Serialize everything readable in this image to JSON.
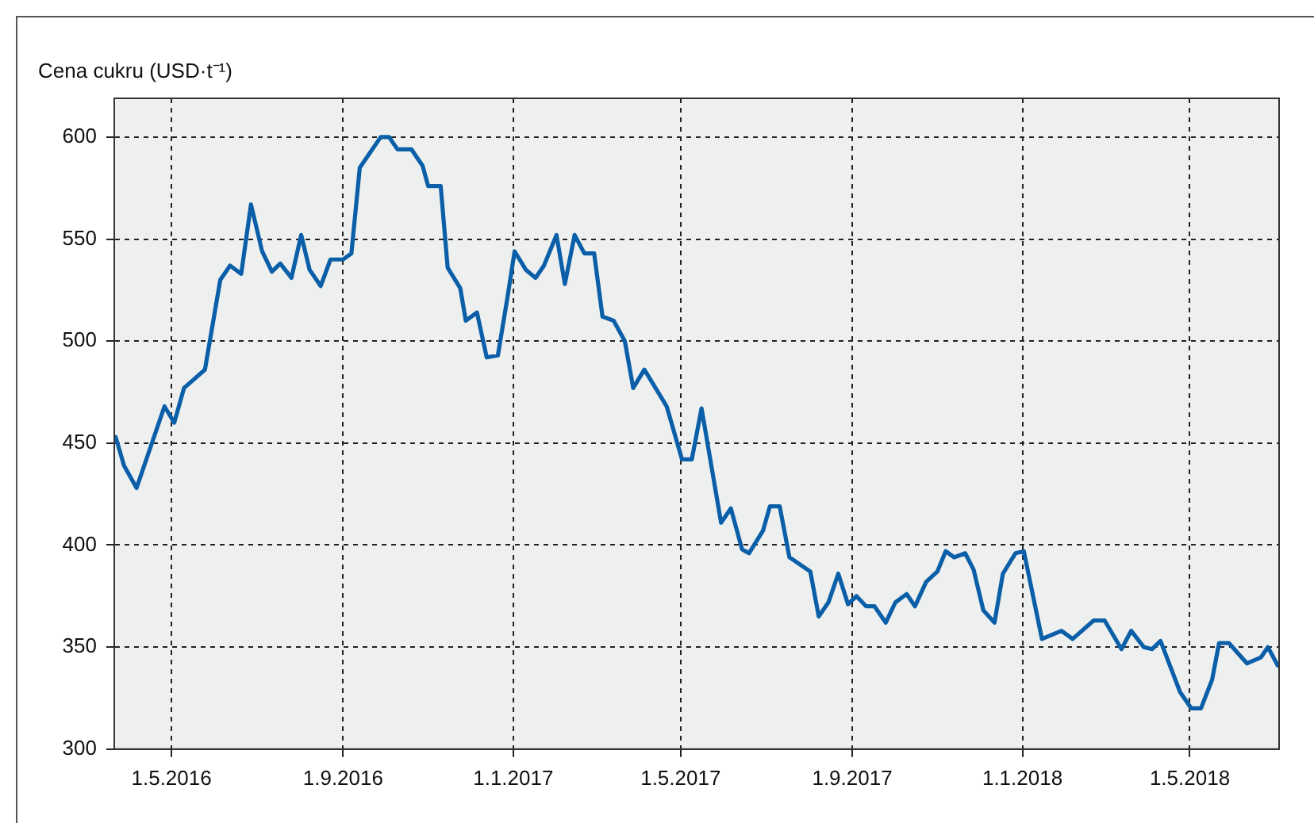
{
  "chart_data": {
    "type": "line",
    "ylabel": "Cena cukru (USD·t⁻¹)",
    "x": [
      "2016-03-22",
      "2016-03-28",
      "2016-04-06",
      "2016-04-14",
      "2016-04-26",
      "2016-05-03",
      "2016-05-10",
      "2016-05-25",
      "2016-06-05",
      "2016-06-12",
      "2016-06-20",
      "2016-06-27",
      "2016-07-05",
      "2016-07-12",
      "2016-07-18",
      "2016-07-26",
      "2016-08-02",
      "2016-08-08",
      "2016-08-16",
      "2016-08-23",
      "2016-09-01",
      "2016-09-07",
      "2016-09-13",
      "2016-09-28",
      "2016-10-04",
      "2016-10-10",
      "2016-10-20",
      "2016-10-28",
      "2016-11-01",
      "2016-11-10",
      "2016-11-15",
      "2016-11-24",
      "2016-11-28",
      "2016-12-06",
      "2016-12-13",
      "2016-12-21",
      "2016-12-28",
      "2017-01-02",
      "2017-01-10",
      "2017-01-17",
      "2017-01-23",
      "2017-02-01",
      "2017-02-07",
      "2017-02-14",
      "2017-02-21",
      "2017-02-28",
      "2017-03-06",
      "2017-03-14",
      "2017-03-22",
      "2017-03-28",
      "2017-04-05",
      "2017-04-21",
      "2017-05-02",
      "2017-05-09",
      "2017-05-16",
      "2017-05-30",
      "2017-06-06",
      "2017-06-14",
      "2017-06-19",
      "2017-06-29",
      "2017-07-04",
      "2017-07-11",
      "2017-07-18",
      "2017-08-02",
      "2017-08-08",
      "2017-08-15",
      "2017-08-22",
      "2017-08-29",
      "2017-09-04",
      "2017-09-11",
      "2017-09-17",
      "2017-09-25",
      "2017-10-02",
      "2017-10-10",
      "2017-10-16",
      "2017-10-24",
      "2017-11-01",
      "2017-11-07",
      "2017-11-13",
      "2017-11-21",
      "2017-11-27",
      "2017-12-04",
      "2017-12-12",
      "2017-12-18",
      "2017-12-27",
      "2018-01-02",
      "2018-01-15",
      "2018-01-29",
      "2018-02-06",
      "2018-02-21",
      "2018-03-01",
      "2018-03-13",
      "2018-03-20",
      "2018-03-29",
      "2018-04-04",
      "2018-04-10",
      "2018-04-24",
      "2018-05-02",
      "2018-05-09",
      "2018-05-17",
      "2018-05-22",
      "2018-05-29",
      "2018-06-11",
      "2018-06-21",
      "2018-06-26",
      "2018-07-03"
    ],
    "series": [
      {
        "color": "#0a5fa8",
        "values": [
          453,
          439,
          428,
          444,
          468,
          460,
          477,
          486,
          530,
          537,
          533,
          567,
          544,
          534,
          538,
          531,
          552,
          535,
          527,
          540,
          540,
          543,
          585,
          600,
          600,
          594,
          594,
          586,
          576,
          576,
          536,
          526,
          510,
          514,
          492,
          493,
          522,
          544,
          535,
          531,
          537,
          552,
          528,
          552,
          543,
          543,
          512,
          510,
          500,
          477,
          486,
          468,
          442,
          442,
          467,
          411,
          418,
          398,
          396,
          407,
          419,
          419,
          394,
          387,
          365,
          372,
          386,
          371,
          375,
          370,
          370,
          362,
          372,
          376,
          370,
          382,
          387,
          397,
          394,
          396,
          388,
          368,
          362,
          386,
          396,
          397,
          354,
          358,
          354,
          363,
          363,
          349,
          358,
          350,
          349,
          353,
          328,
          320,
          320,
          334,
          352,
          352,
          342,
          345,
          350,
          341
        ]
      }
    ],
    "xlim": [
      "2016-03-21",
      "2018-07-04"
    ],
    "xticks": [
      {
        "value": "2016-05-01",
        "label": "1.5.2016"
      },
      {
        "value": "2016-09-01",
        "label": "1.9.2016"
      },
      {
        "value": "2017-01-01",
        "label": "1.1.2017"
      },
      {
        "value": "2017-05-01",
        "label": "1.5.2017"
      },
      {
        "value": "2017-09-01",
        "label": "1.9.2017"
      },
      {
        "value": "2018-01-01",
        "label": "1.1.2018"
      },
      {
        "value": "2018-05-01",
        "label": "1.5.2018"
      }
    ],
    "ylim": [
      300,
      619
    ],
    "yticks": [
      300,
      350,
      400,
      450,
      500,
      550,
      600
    ],
    "grid": true,
    "legend": false,
    "marker": "none",
    "line_style": "solid"
  }
}
